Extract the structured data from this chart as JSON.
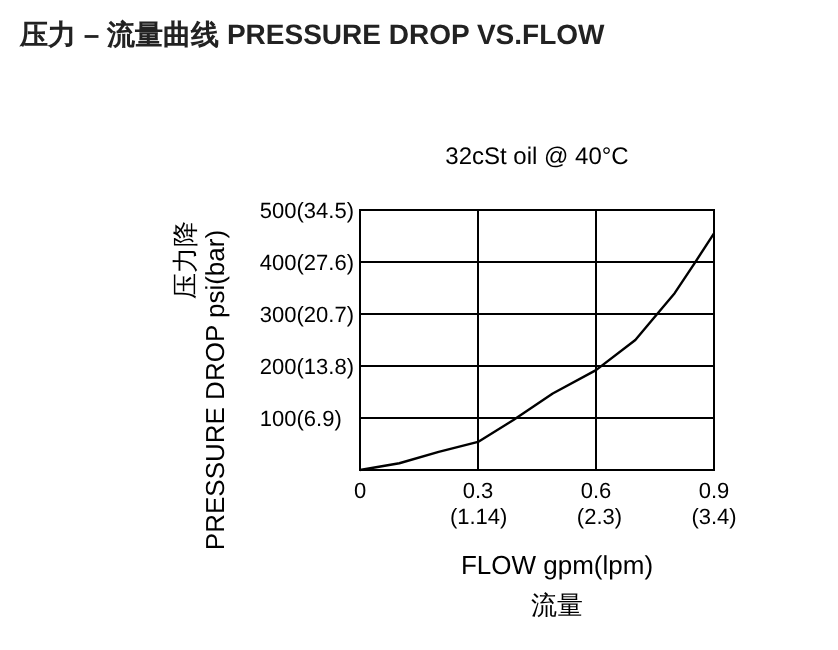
{
  "chart_data": {
    "type": "line",
    "title": "压力 – 流量曲线 PRESSURE DROP VS.FLOW",
    "subtitle": "32cSt oil @ 40°C",
    "xlabel": "FLOW gpm(lpm)\n流量",
    "ylabel": "压力降\nPRESSURE DROP psi(bar)",
    "x": [
      0,
      0.1,
      0.2,
      0.3,
      0.39,
      0.49,
      0.6,
      0.7,
      0.74,
      0.8,
      0.85,
      0.9
    ],
    "series": [
      {
        "color": "#000000",
        "values": [
          0,
          13,
          35,
          54,
          96,
          147,
          192,
          250,
          286,
          340,
          397,
          455
        ]
      }
    ],
    "xlim": [
      0,
      0.9
    ],
    "ylim": [
      0,
      500
    ],
    "xticks": [
      0,
      0.3,
      0.6,
      0.9
    ],
    "x2lim": [
      0,
      3.4
    ],
    "x2ticks": [
      {
        "value": 1.14,
        "label": "(1.14)"
      },
      {
        "value": 2.3,
        "label": "(2.3)"
      },
      {
        "value": 3.4,
        "label": "(3.4)"
      }
    ],
    "yticks": [
      {
        "value": 0,
        "label": null
      },
      100,
      200,
      300,
      400,
      500
    ],
    "y2lim": [
      0,
      34.5
    ],
    "y2ticks": [
      {
        "value": 6.9,
        "label": "(6.9)"
      },
      {
        "value": 13.8,
        "label": "(13.8)"
      },
      {
        "value": 20.7,
        "label": "(20.7)"
      },
      {
        "value": 27.6,
        "label": "(27.6)"
      },
      {
        "value": 34.5,
        "label": "(34.5)"
      }
    ],
    "grid": true,
    "legend": false,
    "marker": "none",
    "line_style": "solid"
  }
}
